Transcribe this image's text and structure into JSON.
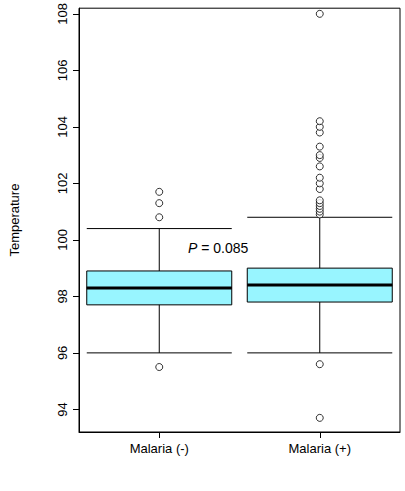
{
  "chart_data": {
    "type": "boxplot",
    "categories": [
      "Malaria (-)",
      "Malaria (+)"
    ],
    "ylabel": "Temperature",
    "annotation": "P = 0.085",
    "color": "#98F5FF",
    "ylim": [
      93.2,
      108.2
    ],
    "yticks": [
      94,
      96,
      98,
      100,
      102,
      104,
      106,
      108
    ],
    "boxes": [
      {
        "whisker_low": 96.0,
        "q1": 97.7,
        "median": 98.3,
        "q3": 98.9,
        "whisker_high": 100.4,
        "outliers": [
          95.5,
          100.8,
          101.3,
          101.7
        ]
      },
      {
        "whisker_low": 96.0,
        "q1": 97.8,
        "median": 98.4,
        "q3": 99.0,
        "whisker_high": 100.8,
        "outliers": [
          93.7,
          95.6,
          100.9,
          101.0,
          101.1,
          101.2,
          101.3,
          101.4,
          101.8,
          102.0,
          102.2,
          102.6,
          102.9,
          103.0,
          103.3,
          103.8,
          104.0,
          104.2,
          108.0
        ]
      }
    ]
  }
}
